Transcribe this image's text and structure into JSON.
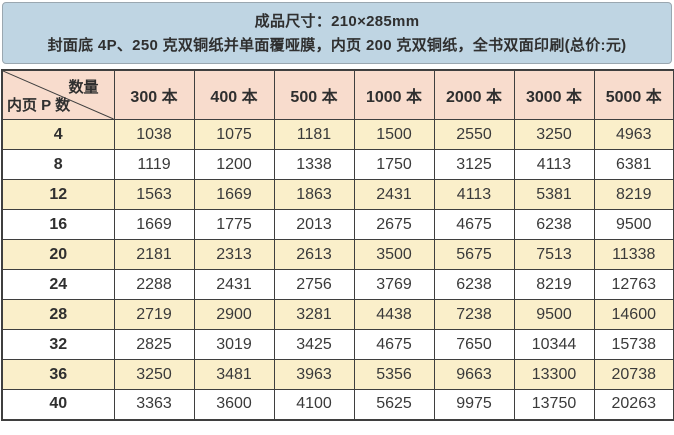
{
  "page": {
    "title_line1": "成品尺寸：210×285mm",
    "title_line2": "封面底 4P、250 克双铜纸并单面覆哑膜，内页 200 克双铜纸，全书双面印刷(总价:元)"
  },
  "table": {
    "corner": {
      "quantity_label": "数量",
      "pages_label": "内页 P 数"
    },
    "column_headers": [
      "300 本",
      "400 本",
      "500 本",
      "1000 本",
      "2000 本",
      "3000 本",
      "5000 本"
    ],
    "row_headers": [
      "4",
      "8",
      "12",
      "16",
      "20",
      "24",
      "28",
      "32",
      "36",
      "40"
    ],
    "rows": [
      [
        1038,
        1075,
        1181,
        1500,
        2550,
        3250,
        4963
      ],
      [
        1119,
        1200,
        1338,
        1750,
        3125,
        4113,
        6381
      ],
      [
        1563,
        1669,
        1863,
        2431,
        4113,
        5381,
        8219
      ],
      [
        1669,
        1775,
        2013,
        2675,
        4675,
        6238,
        9500
      ],
      [
        2181,
        2313,
        2613,
        3500,
        5675,
        7513,
        11338
      ],
      [
        2288,
        2431,
        2756,
        3769,
        6238,
        8219,
        12763
      ],
      [
        2719,
        2900,
        3281,
        4438,
        7238,
        9500,
        14600
      ],
      [
        2825,
        3019,
        3425,
        4675,
        7650,
        10344,
        15738
      ],
      [
        3250,
        3481,
        3963,
        5356,
        9663,
        13300,
        20738
      ],
      [
        3363,
        3600,
        4100,
        5625,
        9975,
        13750,
        20263
      ]
    ]
  },
  "colors": {
    "note_bg": "#bfd5e3",
    "note_border": "#9aa7b0",
    "head_bg": "#f8dccd",
    "row_alt_bg": "#faefca",
    "row_bg": "#ffffff",
    "grid_line": "#3f3f3f",
    "text": "#2f2f2f"
  }
}
